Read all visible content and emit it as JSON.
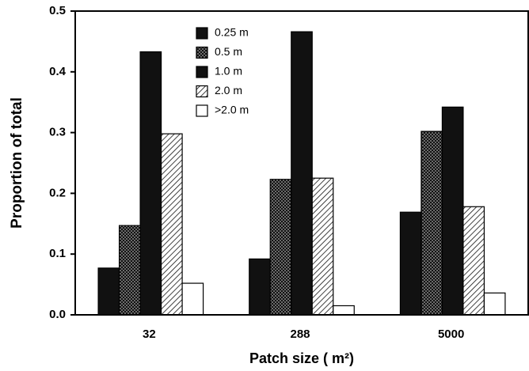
{
  "chart_data": {
    "type": "bar",
    "x_label": "Patch size ( m²)",
    "y_label": "Proportion of total",
    "categories": [
      "32",
      "288",
      "5000"
    ],
    "series": [
      {
        "name": "0.25 m",
        "color": "#111111",
        "pattern": "solid",
        "values": [
          0.077,
          0.092,
          0.169
        ]
      },
      {
        "name": "0.5 m",
        "color": "#111111",
        "pattern": "crosshatch",
        "values": [
          0.147,
          0.223,
          0.302
        ]
      },
      {
        "name": "1.0 m",
        "color": "#111111",
        "pattern": "solid",
        "values": [
          0.433,
          0.466,
          0.342
        ]
      },
      {
        "name": "2.0 m",
        "color": "#111111",
        "pattern": "hatch",
        "values": [
          0.298,
          0.225,
          0.178
        ]
      },
      {
        "name": ">2.0 m",
        "color": "#ffffff",
        "pattern": "solid",
        "values": [
          0.052,
          0.015,
          0.036
        ]
      }
    ],
    "ylim": [
      0,
      0.5
    ],
    "yticks": [
      {
        "value": 0,
        "label": "0.0"
      },
      0.1,
      0.2,
      0.3,
      0.4,
      0.5
    ]
  }
}
